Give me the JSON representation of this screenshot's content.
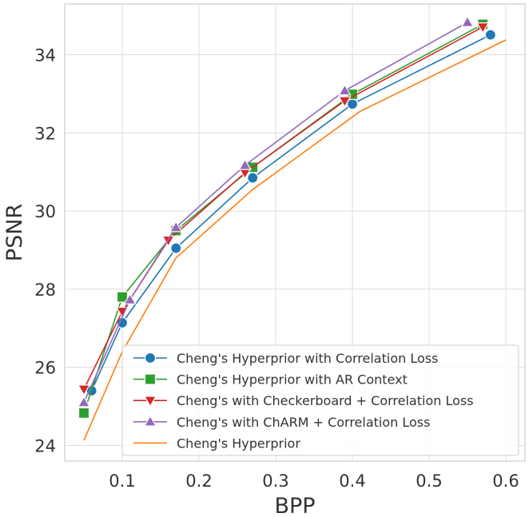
{
  "chart_data": {
    "type": "line",
    "title": "",
    "xlabel": "BPP",
    "ylabel": "PSNR",
    "xlim": [
      0.025,
      0.625
    ],
    "ylim": [
      23.6,
      35.3
    ],
    "xticks": [
      0.1,
      0.2,
      0.3,
      0.4,
      0.5,
      0.6
    ],
    "xtick_labels": [
      "0.1",
      "0.2",
      "0.3",
      "0.4",
      "0.5",
      "0.6"
    ],
    "yticks": [
      24,
      26,
      28,
      30,
      32,
      34
    ],
    "ytick_labels": [
      "24",
      "26",
      "28",
      "30",
      "32",
      "34"
    ],
    "grid": true,
    "legend_position": "lower-right",
    "series": [
      {
        "name": "Cheng's Hyperprior with Correlation Loss",
        "color": "#1f77b4",
        "marker": "circle",
        "x": [
          0.06,
          0.1,
          0.17,
          0.27,
          0.4,
          0.58
        ],
        "y": [
          25.4,
          27.14,
          29.05,
          30.85,
          32.74,
          34.51
        ]
      },
      {
        "name": "Cheng's Hyperprior with AR Context",
        "color": "#2ca02c",
        "marker": "square",
        "x": [
          0.05,
          0.1,
          0.17,
          0.27,
          0.4,
          0.57
        ],
        "y": [
          24.83,
          27.8,
          29.5,
          31.12,
          32.99,
          34.78
        ]
      },
      {
        "name": "Cheng's with Checkerboard + Correlation Loss",
        "color": "#d62728",
        "marker": "triangle-down",
        "x": [
          0.05,
          0.1,
          0.16,
          0.26,
          0.39,
          0.57
        ],
        "y": [
          25.44,
          27.43,
          29.25,
          30.98,
          32.82,
          34.71
        ]
      },
      {
        "name": "Cheng's with ChARM + Correlation Loss",
        "color": "#9467bd",
        "marker": "triangle-up",
        "x": [
          0.05,
          0.11,
          0.17,
          0.26,
          0.39,
          0.55
        ],
        "y": [
          25.1,
          27.73,
          29.58,
          31.17,
          33.08,
          34.83
        ]
      },
      {
        "name": "Cheng's Hyperprior",
        "color": "#ff7f0e",
        "marker": "none",
        "x": [
          0.05,
          0.1,
          0.17,
          0.27,
          0.41,
          0.6
        ],
        "y": [
          24.13,
          26.4,
          28.8,
          30.55,
          32.55,
          34.38
        ]
      }
    ]
  }
}
